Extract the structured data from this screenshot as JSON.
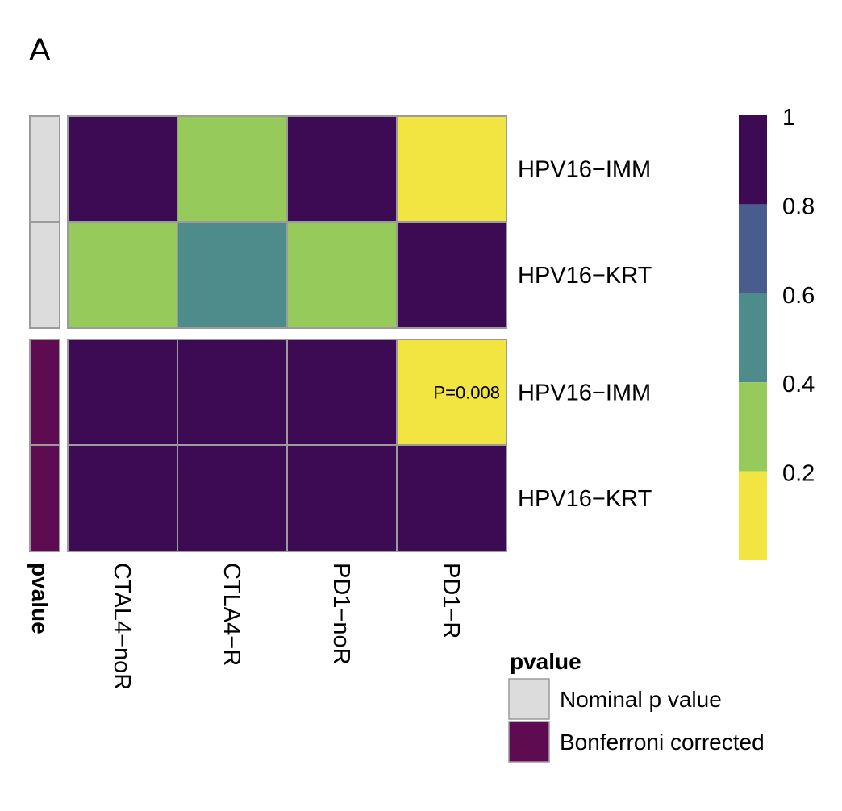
{
  "panel_letter": "A",
  "chart_data": {
    "type": "heatmap",
    "columns": [
      "CTAL4−noR",
      "CTLA4−R",
      "PD1−noR",
      "PD1−R"
    ],
    "rows": [
      "HPV16−IMM",
      "HPV16−KRT",
      "HPV16−IMM",
      "HPV16−KRT"
    ],
    "row_groups": [
      "Nominal p value",
      "Nominal p value",
      "Bonferroni corrected",
      "Bonferroni corrected"
    ],
    "values": [
      [
        0.9,
        0.3,
        0.9,
        0.1
      ],
      [
        0.3,
        0.5,
        0.3,
        0.9
      ],
      [
        0.9,
        0.9,
        0.9,
        0.1
      ],
      [
        0.9,
        0.9,
        0.9,
        0.9
      ]
    ],
    "cell_annotations": [
      {
        "row": 2,
        "col": 3,
        "text": "P=0.008"
      }
    ],
    "color_scale": {
      "range": [
        0,
        1
      ],
      "ticks": [
        "1",
        "0.8",
        "0.6",
        "0.4",
        "0.2"
      ],
      "bins": [
        {
          "from": 0.8,
          "to": 1.0,
          "color": "#3d0a54"
        },
        {
          "from": 0.6,
          "to": 0.8,
          "color": "#485d8e"
        },
        {
          "from": 0.4,
          "to": 0.6,
          "color": "#4e8c8c"
        },
        {
          "from": 0.2,
          "to": 0.4,
          "color": "#96cb5c"
        },
        {
          "from": 0.0,
          "to": 0.2,
          "color": "#f2e541"
        }
      ]
    },
    "annotation_bar": {
      "title": "pvalue",
      "legend_title": "pvalue",
      "categories": [
        {
          "label": "Nominal p value",
          "color": "#dcdcdc"
        },
        {
          "label": "Bonferroni corrected",
          "color": "#5e0b52"
        }
      ]
    },
    "grid": true
  }
}
